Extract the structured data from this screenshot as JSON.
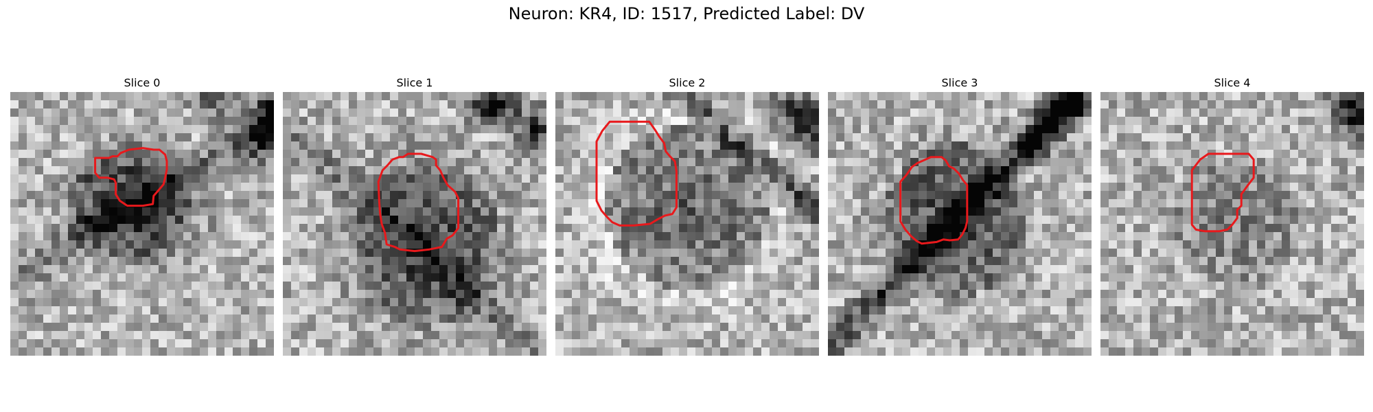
{
  "figure": {
    "title": "Neuron: KR4, ID: 1517, Predicted Label: DV",
    "contour_color": "#e8191c"
  },
  "panels": [
    {
      "title": "Slice 0",
      "contour": [
        [
          2.3,
          0
        ],
        [
          3.3,
          0
        ],
        [
          4,
          0
        ],
        [
          4.4,
          -0.2
        ],
        [
          5,
          -0.2
        ],
        [
          5.4,
          -0.6
        ],
        [
          6.4,
          -1
        ],
        [
          8.1,
          -1.2
        ],
        [
          9.4,
          -1
        ],
        [
          10.1,
          -1
        ],
        [
          10.8,
          -0.4
        ],
        [
          11,
          0.4
        ],
        [
          11,
          1.4
        ],
        [
          10.8,
          2.4
        ],
        [
          10.6,
          3.2
        ],
        [
          10.1,
          3.8
        ],
        [
          9.4,
          4.6
        ],
        [
          9.3,
          5.6
        ],
        [
          8.1,
          5.8
        ],
        [
          6.2,
          5.8
        ],
        [
          5.3,
          5.2
        ],
        [
          4.8,
          4.4
        ],
        [
          4.8,
          3
        ],
        [
          4.6,
          2.6
        ],
        [
          3.8,
          2.4
        ],
        [
          2.8,
          2.4
        ],
        [
          2.3,
          1.8
        ]
      ]
    },
    {
      "title": "Slice 1",
      "contour": [
        [
          2.1,
          0
        ],
        [
          2.7,
          -0.6
        ],
        [
          3.3,
          -1.3
        ],
        [
          4.1,
          -1.6
        ],
        [
          4.6,
          -1.6
        ],
        [
          5.2,
          -2
        ],
        [
          6.8,
          -2
        ],
        [
          8.2,
          -1.6
        ],
        [
          8.6,
          -1.3
        ],
        [
          8.6,
          -0.6
        ],
        [
          9.1,
          0
        ],
        [
          9.5,
          0.9
        ],
        [
          10,
          1.8
        ],
        [
          10.9,
          2.6
        ],
        [
          11.3,
          3.4
        ],
        [
          11.3,
          5.4
        ],
        [
          11.3,
          7
        ],
        [
          10.6,
          7.9
        ],
        [
          9.9,
          8.3
        ],
        [
          9.3,
          9.3
        ],
        [
          7.8,
          9.6
        ],
        [
          6,
          9.8
        ],
        [
          4.2,
          9.6
        ],
        [
          3.6,
          9.3
        ],
        [
          2.6,
          9
        ],
        [
          2.4,
          7.6
        ],
        [
          2,
          6.5
        ],
        [
          1.8,
          5.2
        ],
        [
          1.7,
          3.8
        ],
        [
          1.6,
          1.4
        ]
      ]
    },
    {
      "title": "Slice 2",
      "contour": [
        [
          2,
          -2
        ],
        [
          2.7,
          -3.3
        ],
        [
          3.6,
          -4.4
        ],
        [
          5.2,
          -4.4
        ],
        [
          7.2,
          -4.4
        ],
        [
          8.4,
          -4.4
        ],
        [
          9.1,
          -3.4
        ],
        [
          9.6,
          -2.6
        ],
        [
          10.2,
          -1.8
        ],
        [
          10.4,
          -0.8
        ],
        [
          10.9,
          -0.2
        ],
        [
          11.5,
          0.4
        ],
        [
          11.7,
          1.6
        ],
        [
          11.7,
          3
        ],
        [
          11.7,
          4.6
        ],
        [
          11.7,
          6
        ],
        [
          11.2,
          6.8
        ],
        [
          10.3,
          7
        ],
        [
          9.5,
          7.4
        ],
        [
          8.5,
          8
        ],
        [
          6.5,
          8.2
        ],
        [
          4.8,
          8.2
        ],
        [
          3.9,
          7.8
        ],
        [
          3.3,
          7.2
        ],
        [
          2.6,
          6.4
        ],
        [
          2,
          5.2
        ],
        [
          2,
          2.6
        ]
      ]
    },
    {
      "title": "Slice 3",
      "contour": [
        [
          1.8,
          1.4
        ],
        [
          2.5,
          0.6
        ],
        [
          3.2,
          -0.4
        ],
        [
          3.9,
          -0.9
        ],
        [
          4.6,
          -1.2
        ],
        [
          5.5,
          -1.6
        ],
        [
          6.8,
          -1.6
        ],
        [
          7.3,
          -1.2
        ],
        [
          7.7,
          -0.5
        ],
        [
          8.3,
          -0.2
        ],
        [
          8.9,
          0.4
        ],
        [
          9.4,
          1.2
        ],
        [
          9.9,
          1.8
        ],
        [
          9.9,
          4.5
        ],
        [
          9.9,
          6.2
        ],
        [
          9.7,
          7
        ],
        [
          9.3,
          7.8
        ],
        [
          8.8,
          8.4
        ],
        [
          7.8,
          8.5
        ],
        [
          7,
          8.4
        ],
        [
          6.2,
          8.7
        ],
        [
          4.4,
          8.9
        ],
        [
          3.8,
          8.6
        ],
        [
          3.1,
          8
        ],
        [
          2.4,
          7.2
        ],
        [
          1.8,
          6.2
        ],
        [
          1.8,
          3.6
        ]
      ]
    },
    {
      "title": "Slice 4",
      "contour": [
        [
          2.6,
          0
        ],
        [
          3.6,
          -1.3
        ],
        [
          4.6,
          -2
        ],
        [
          6.2,
          -2
        ],
        [
          7.9,
          -2
        ],
        [
          9.5,
          -2
        ],
        [
          10.1,
          -1.3
        ],
        [
          10.1,
          0
        ],
        [
          10.1,
          0.9
        ],
        [
          9.4,
          1.8
        ],
        [
          8.9,
          2.5
        ],
        [
          8.6,
          2.9
        ],
        [
          8.6,
          4.3
        ],
        [
          8.1,
          4.8
        ],
        [
          8.1,
          5.8
        ],
        [
          7.5,
          6.6
        ],
        [
          6.9,
          7.2
        ],
        [
          5.9,
          7.4
        ],
        [
          4.2,
          7.4
        ],
        [
          3.1,
          7.2
        ],
        [
          2.6,
          6.6
        ],
        [
          2.6,
          3.6
        ]
      ]
    }
  ]
}
